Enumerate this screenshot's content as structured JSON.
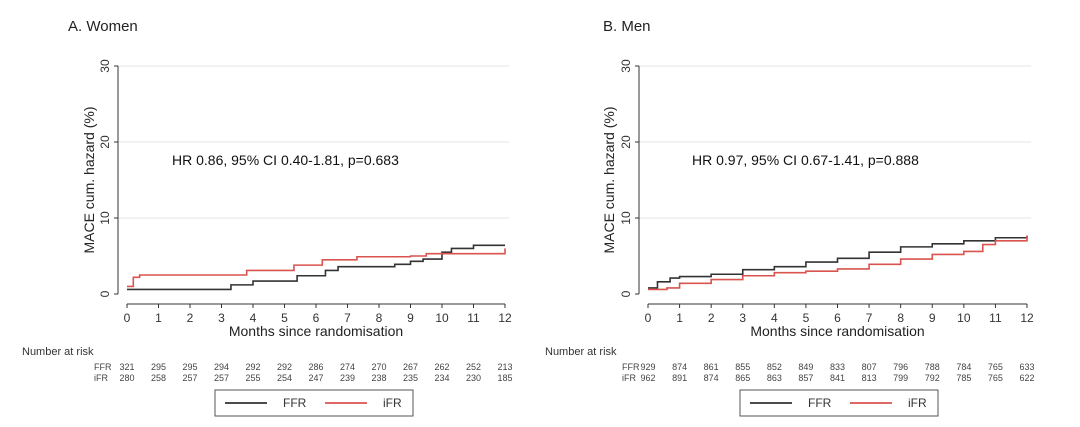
{
  "chart_data": [
    {
      "type": "line",
      "title": "A. Women",
      "xlabel": "Months since randomisation",
      "ylabel": "MACE cum. hazard (%)",
      "xlim": [
        0,
        12
      ],
      "ylim": [
        0,
        30
      ],
      "x_ticks": [
        0,
        1,
        2,
        3,
        4,
        5,
        6,
        7,
        8,
        9,
        10,
        11,
        12
      ],
      "y_ticks": [
        0,
        10,
        20,
        30
      ],
      "grid": true,
      "annotation": "HR 0.86, 95% CI 0.40-1.81, p=0.683",
      "series": [
        {
          "name": "FFR",
          "color": "#333333",
          "points": [
            [
              0,
              0.6
            ],
            [
              3,
              0.6
            ],
            [
              3.3,
              1.2
            ],
            [
              4,
              1.7
            ],
            [
              5.3,
              1.7
            ],
            [
              5.4,
              2.4
            ],
            [
              6,
              2.4
            ],
            [
              6.3,
              3.1
            ],
            [
              6.7,
              3.6
            ],
            [
              8.5,
              3.9
            ],
            [
              9,
              4.3
            ],
            [
              9.4,
              4.6
            ],
            [
              10,
              5.5
            ],
            [
              10.3,
              6.0
            ],
            [
              11,
              6.4
            ],
            [
              12,
              6.4
            ]
          ]
        },
        {
          "name": "iFR",
          "color": "#d9534f",
          "points": [
            [
              0,
              1.0
            ],
            [
              0.2,
              2.2
            ],
            [
              0.4,
              2.5
            ],
            [
              3.6,
              2.5
            ],
            [
              3.8,
              3.1
            ],
            [
              5,
              3.1
            ],
            [
              5.3,
              3.8
            ],
            [
              6,
              3.8
            ],
            [
              6.2,
              4.5
            ],
            [
              7.3,
              4.9
            ],
            [
              9,
              5.0
            ],
            [
              9.5,
              5.3
            ],
            [
              12,
              5.3
            ],
            [
              12,
              6.0
            ]
          ]
        }
      ],
      "number_at_risk": {
        "header": "Number at risk",
        "rows": [
          {
            "label": "FFR",
            "values": [
              "321",
              "295",
              "295",
              "294",
              "292",
              "292",
              "286",
              "274",
              "270",
              "267",
              "262",
              "252",
              "213"
            ]
          },
          {
            "label": "iFR",
            "values": [
              "280",
              "258",
              "257",
              "257",
              "255",
              "254",
              "247",
              "239",
              "238",
              "235",
              "234",
              "230",
              "185"
            ]
          }
        ]
      },
      "legend": [
        "FFR",
        "iFR"
      ],
      "legend_position": "bottom"
    },
    {
      "type": "line",
      "title": "B. Men",
      "xlabel": "Months since randomisation",
      "ylabel": "MACE cum. hazard (%)",
      "xlim": [
        0,
        12
      ],
      "ylim": [
        0,
        30
      ],
      "x_ticks": [
        0,
        1,
        2,
        3,
        4,
        5,
        6,
        7,
        8,
        9,
        10,
        11,
        12
      ],
      "y_ticks": [
        0,
        10,
        20,
        30
      ],
      "grid": true,
      "annotation": "HR 0.97, 95% CI 0.67-1.41, p=0.888",
      "series": [
        {
          "name": "FFR",
          "color": "#333333",
          "points": [
            [
              0,
              0.8
            ],
            [
              0.3,
              1.6
            ],
            [
              0.7,
              2.1
            ],
            [
              1,
              2.3
            ],
            [
              2,
              2.6
            ],
            [
              3,
              3.2
            ],
            [
              4,
              3.6
            ],
            [
              5,
              4.2
            ],
            [
              6,
              4.7
            ],
            [
              7,
              5.5
            ],
            [
              8,
              6.2
            ],
            [
              9,
              6.6
            ],
            [
              10,
              7.0
            ],
            [
              11,
              7.4
            ],
            [
              12,
              7.6
            ]
          ]
        },
        {
          "name": "iFR",
          "color": "#d9534f",
          "points": [
            [
              0,
              0.6
            ],
            [
              0.6,
              0.8
            ],
            [
              1,
              1.4
            ],
            [
              2,
              1.9
            ],
            [
              3,
              2.4
            ],
            [
              4,
              2.8
            ],
            [
              5,
              3.0
            ],
            [
              6,
              3.3
            ],
            [
              7,
              3.9
            ],
            [
              8,
              4.6
            ],
            [
              9,
              5.2
            ],
            [
              10,
              5.6
            ],
            [
              10.6,
              6.5
            ],
            [
              11,
              7.0
            ],
            [
              12,
              7.7
            ]
          ]
        }
      ],
      "number_at_risk": {
        "header": "Number at risk",
        "rows": [
          {
            "label": "FFR",
            "values": [
              "929",
              "874",
              "861",
              "855",
              "852",
              "849",
              "833",
              "807",
              "796",
              "788",
              "784",
              "765",
              "633"
            ]
          },
          {
            "label": "iFR",
            "values": [
              "962",
              "891",
              "874",
              "865",
              "863",
              "857",
              "841",
              "813",
              "799",
              "792",
              "785",
              "765",
              "622"
            ]
          }
        ]
      },
      "legend": [
        "FFR",
        "iFR"
      ],
      "legend_position": "bottom"
    }
  ]
}
